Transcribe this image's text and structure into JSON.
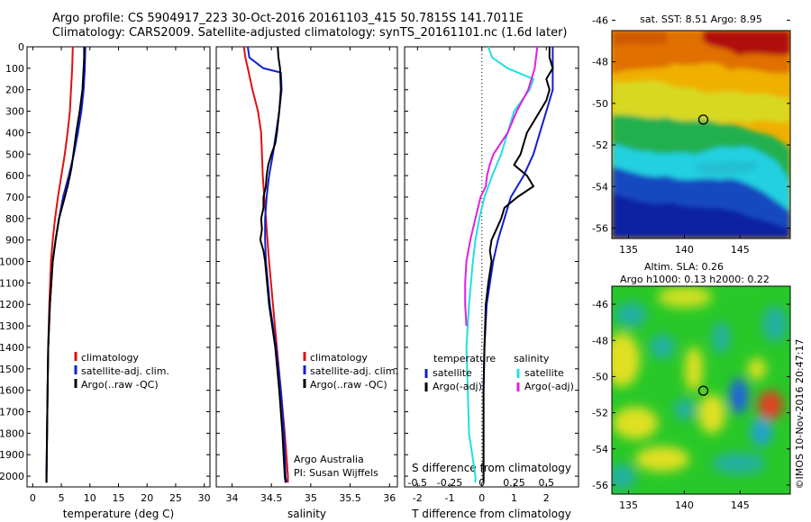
{
  "header": {
    "line1": "Argo profile: CS 5904917_223 30-Oct-2016 20161103_415 50.7815S 141.7011E",
    "line2": "Climatology: CARS2009. Satellite-adjusted climatology: synTS_20161101.nc (1.6d later)"
  },
  "colors": {
    "climatology": "#e01010",
    "satellite": "#1020d0",
    "argo": "#000000",
    "temperature_sat": "#1020d0",
    "salinity_sat": "#20e0e0",
    "salinity_argo": "#e020e0"
  },
  "credit": "©IMOS 10-Nov-2016 20:47:17",
  "chart_data": [
    {
      "type": "line",
      "panel": "temperature",
      "xlabel": "temperature (deg C)",
      "ylim": [
        2050,
        0
      ],
      "xlim": [
        -1,
        31
      ],
      "xticks": [
        "0",
        "5",
        "10",
        "15",
        "20",
        "25",
        "30"
      ],
      "xtick_values": [
        0,
        5,
        10,
        15,
        20,
        25,
        30
      ],
      "yticks": [
        "0",
        "100",
        "200",
        "300",
        "400",
        "500",
        "600",
        "700",
        "800",
        "900",
        "1000",
        "1100",
        "1200",
        "1300",
        "1400",
        "1500",
        "1600",
        "1700",
        "1800",
        "1900",
        "2000"
      ],
      "ytick_values": [
        0,
        100,
        200,
        300,
        400,
        500,
        600,
        700,
        800,
        900,
        1000,
        1100,
        1200,
        1300,
        1400,
        1500,
        1600,
        1700,
        1800,
        1900,
        2000
      ],
      "legend": [
        "climatology",
        "satellite-adj. clim.",
        "Argo(..raw -QC)"
      ],
      "series": [
        {
          "name": "climatology",
          "color": "#e01010",
          "y": [
            0,
            100,
            200,
            300,
            400,
            500,
            600,
            700,
            800,
            900,
            1000,
            1200,
            1400,
            1600,
            1800,
            2000,
            2030
          ],
          "x": [
            7.0,
            6.9,
            6.7,
            6.5,
            6.1,
            5.6,
            5.0,
            4.4,
            3.9,
            3.5,
            3.2,
            2.9,
            2.7,
            2.6,
            2.5,
            2.4,
            2.4
          ]
        },
        {
          "name": "satellite-adj. clim.",
          "color": "#1020d0",
          "y": [
            0,
            100,
            200,
            300,
            400,
            500,
            600,
            700,
            800,
            900,
            1000,
            1200,
            1400,
            1600,
            1800,
            2000,
            2030
          ],
          "x": [
            9.2,
            9.1,
            8.9,
            8.5,
            7.9,
            7.2,
            6.3,
            5.3,
            4.6,
            4.0,
            3.5,
            3.0,
            2.7,
            2.6,
            2.5,
            2.4,
            2.4
          ]
        },
        {
          "name": "Argo(..raw -QC)",
          "color": "#000000",
          "y": [
            0,
            50,
            100,
            200,
            300,
            400,
            500,
            560,
            600,
            650,
            700,
            800,
            900,
            1000,
            1200,
            1400,
            1600,
            1800,
            2000,
            2030
          ],
          "x": [
            9.0,
            9.0,
            8.9,
            8.7,
            8.2,
            7.6,
            7.1,
            6.8,
            6.5,
            6.1,
            5.6,
            4.6,
            4.0,
            3.5,
            3.0,
            2.7,
            2.6,
            2.5,
            2.4,
            2.4
          ]
        }
      ]
    },
    {
      "type": "line",
      "panel": "salinity",
      "xlabel": "salinity",
      "ylim": [
        2050,
        0
      ],
      "xlim": [
        33.8,
        36.1
      ],
      "xticks": [
        "34",
        "34.5",
        "35",
        "35.5",
        "36"
      ],
      "xtick_values": [
        34,
        34.5,
        35,
        35.5,
        36
      ],
      "legend": [
        "climatology",
        "satellite-adj. clim.",
        "Argo(..raw -QC)"
      ],
      "annotation": [
        "Argo Australia",
        "PI: Susan Wijffels"
      ],
      "series": [
        {
          "name": "climatology",
          "color": "#e01010",
          "y": [
            0,
            50,
            100,
            200,
            300,
            400,
            500,
            600,
            700,
            800,
            900,
            1000,
            1200,
            1400,
            1600,
            1800,
            2000,
            2030
          ],
          "x": [
            34.15,
            34.17,
            34.2,
            34.26,
            34.33,
            34.37,
            34.38,
            34.39,
            34.41,
            34.43,
            34.45,
            34.47,
            34.52,
            34.57,
            34.62,
            34.67,
            34.71,
            34.71
          ]
        },
        {
          "name": "satellite-adj. clim.",
          "color": "#1020d0",
          "y": [
            0,
            50,
            100,
            120,
            200,
            300,
            400,
            500,
            600,
            700,
            800,
            900,
            1000,
            1200,
            1400,
            1600,
            1800,
            2000,
            2030
          ],
          "x": [
            34.2,
            34.22,
            34.4,
            34.62,
            34.63,
            34.6,
            34.56,
            34.52,
            34.47,
            34.44,
            34.42,
            34.42,
            34.43,
            34.48,
            34.56,
            34.62,
            34.66,
            34.68,
            34.69
          ]
        },
        {
          "name": "Argo(..raw -QC)",
          "color": "#000000",
          "y": [
            0,
            50,
            100,
            200,
            300,
            400,
            450,
            500,
            550,
            600,
            650,
            700,
            750,
            800,
            850,
            900,
            950,
            1000,
            1200,
            1400,
            1600,
            1800,
            2000,
            2030
          ],
          "x": [
            34.58,
            34.59,
            34.61,
            34.62,
            34.6,
            34.57,
            34.55,
            34.5,
            34.46,
            34.44,
            34.43,
            34.4,
            34.4,
            34.37,
            34.38,
            34.36,
            34.4,
            34.42,
            34.47,
            34.55,
            34.6,
            34.64,
            34.67,
            34.68
          ]
        }
      ]
    },
    {
      "type": "line",
      "panel": "difference",
      "xlabel": "T difference from climatology",
      "x2label": "S difference from climatology",
      "ylim": [
        2050,
        0
      ],
      "xlim": [
        -2.4,
        3.0
      ],
      "xticks": [
        "-2",
        "-1",
        "0",
        "1",
        "2"
      ],
      "xtick_values": [
        -2,
        -1,
        0,
        1,
        2
      ],
      "x2ticks": [
        "-0.5",
        "-0.25",
        "0",
        "0.25",
        "0.5"
      ],
      "x2tick_values": [
        -0.5,
        -0.25,
        0,
        0.25,
        0.5
      ],
      "legend": {
        "temperature_title": "temperature",
        "salinity_title": "salinity",
        "temperature_items": [
          "satellite",
          "Argo(-adj)"
        ],
        "salinity_items": [
          "satellite",
          "Argo(-adj)"
        ]
      },
      "series": [
        {
          "name": "temperature satellite",
          "color": "#1020d0",
          "y": [
            0,
            100,
            200,
            300,
            400,
            500,
            600,
            700,
            800,
            900,
            1000,
            1100,
            1200,
            1400,
            1600,
            1800,
            2000,
            2030
          ],
          "x": [
            2.2,
            2.2,
            2.2,
            2.0,
            1.8,
            1.6,
            1.3,
            0.9,
            0.7,
            0.5,
            0.35,
            0.25,
            0.15,
            0.08,
            0.05,
            0.05,
            0.05,
            0.05
          ]
        },
        {
          "name": "temperature Argo(-adj)",
          "color": "#000000",
          "y": [
            0,
            50,
            100,
            150,
            200,
            250,
            300,
            350,
            400,
            450,
            500,
            550,
            600,
            650,
            700,
            750,
            800,
            850,
            900,
            950,
            1000,
            1100,
            1200,
            1400,
            1600,
            1800,
            2000,
            2030
          ],
          "x": [
            2.1,
            2.1,
            2.2,
            2.0,
            2.1,
            2.0,
            1.8,
            1.6,
            1.4,
            1.3,
            1.2,
            1.0,
            1.4,
            1.6,
            1.1,
            0.7,
            0.6,
            0.45,
            0.3,
            0.25,
            0.3,
            0.2,
            0.12,
            0.08,
            0.05,
            0.05,
            0.05,
            0.05
          ]
        },
        {
          "name": "salinity satellite",
          "color": "#20e0e0",
          "y": [
            0,
            50,
            100,
            150,
            200,
            300,
            400,
            500,
            600,
            700,
            800,
            900,
            1000,
            1200,
            1400,
            1600,
            1800,
            2000,
            2030
          ],
          "x": [
            0.05,
            0.08,
            0.2,
            0.4,
            0.37,
            0.25,
            0.2,
            0.15,
            0.08,
            0.02,
            -0.02,
            -0.05,
            -0.07,
            -0.1,
            -0.12,
            -0.11,
            -0.1,
            -0.05,
            -0.05
          ]
        },
        {
          "name": "salinity Argo(-adj)",
          "color": "#e020e0",
          "y": [
            0,
            50,
            100,
            200,
            300,
            400,
            500,
            550,
            600,
            650,
            700,
            800,
            900,
            1000,
            1100,
            1200,
            1300
          ],
          "x": [
            0.43,
            0.42,
            0.41,
            0.36,
            0.27,
            0.2,
            0.09,
            0.06,
            0.04,
            0.03,
            -0.01,
            -0.05,
            -0.09,
            -0.12,
            -0.13,
            -0.13,
            -0.12
          ]
        }
      ]
    }
  ],
  "maps": [
    {
      "title": "sat. SST: 8.51 Argo: 8.95",
      "yticks": [
        "-46",
        "-48",
        "-50",
        "-52",
        "-54",
        "-56"
      ],
      "ytick_values": [
        -46,
        -48,
        -50,
        -52,
        -54,
        -56
      ],
      "xticks": [
        "135",
        "140",
        "145"
      ],
      "xtick_values": [
        135,
        140,
        145
      ],
      "lat_range": [
        -46.5,
        -56.5
      ],
      "lon_range": [
        133.5,
        149.5
      ],
      "marker": {
        "lat": -50.78,
        "lon": 141.7
      }
    },
    {
      "title_line1": "Altim. SLA: 0.26",
      "title_line2": "Argo h1000: 0.13 h2000: 0.22",
      "yticks": [
        "-46",
        "-48",
        "-50",
        "-52",
        "-54",
        "-56"
      ],
      "ytick_values": [
        -46,
        -48,
        -50,
        -52,
        -54,
        -56
      ],
      "xticks": [
        "135",
        "140",
        "145"
      ],
      "xtick_values": [
        135,
        140,
        145
      ],
      "lat_range": [
        -45.0,
        -56.5
      ],
      "lon_range": [
        133.5,
        149.5
      ],
      "marker": {
        "lat": -50.78,
        "lon": 141.7
      }
    }
  ]
}
